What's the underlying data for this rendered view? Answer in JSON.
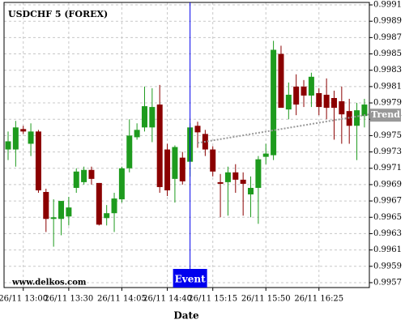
{
  "chart_data": {
    "type": "candlestick",
    "title": "USDCHF 5 (FOREX)",
    "x_label": "Date",
    "watermark": "www.delkos.com",
    "categories": [
      null,
      null,
      "26/11 13:00",
      null,
      null,
      null,
      null,
      null,
      "26/11 13:30",
      null,
      null,
      null,
      null,
      null,
      null,
      "26/11 14:05",
      null,
      null,
      null,
      null,
      null,
      "26/11 14:40",
      null,
      null,
      null,
      null,
      null,
      "26/11 15:15",
      null,
      null,
      null,
      null,
      null,
      null,
      "26/11 15:50",
      null,
      null,
      null,
      null,
      null,
      null,
      "26/11 16:25",
      null,
      null,
      null,
      null,
      null,
      null
    ],
    "open": [
      0.99733,
      0.99733,
      0.99758,
      0.9974,
      0.99755,
      0.99681,
      0.99648,
      0.99648,
      0.99651,
      0.99686,
      0.99693,
      0.99708,
      0.99692,
      0.99649,
      0.99655,
      0.99672,
      0.9971,
      0.99748,
      0.9976,
      0.9976,
      0.99788,
      0.99733,
      0.99697,
      0.99723,
      0.99718,
      0.99762,
      0.99752,
      0.99733,
      0.99693,
      0.99693,
      0.99705,
      0.99696,
      0.99678,
      0.99686,
      0.99724,
      0.99726,
      0.9985,
      0.99782,
      0.9981,
      0.9981,
      0.99799,
      0.99802,
      0.998,
      0.99796,
      0.99792,
      0.9978,
      0.99762,
      0.99774
    ],
    "high": [
      0.99755,
      0.99768,
      0.99762,
      0.99765,
      0.99757,
      0.99685,
      0.99672,
      0.9967,
      0.99675,
      0.9971,
      0.99712,
      0.99712,
      0.99692,
      0.99665,
      0.9968,
      0.99712,
      0.9977,
      0.99765,
      0.9981,
      0.99808,
      0.99812,
      0.9974,
      0.99738,
      0.9973,
      0.99765,
      0.99767,
      0.99757,
      0.99737,
      0.99703,
      0.99712,
      0.99715,
      0.99705,
      0.997,
      0.99725,
      0.9974,
      0.99866,
      0.9986,
      0.99815,
      0.99825,
      0.99818,
      0.99827,
      0.99808,
      0.9982,
      0.99805,
      0.9981,
      0.99795,
      0.9979,
      0.99795
    ],
    "low": [
      0.9972,
      0.99712,
      0.99752,
      0.99725,
      0.9968,
      0.99632,
      0.99614,
      0.99628,
      0.9964,
      0.9968,
      0.9969,
      0.9969,
      0.9964,
      0.9964,
      0.99632,
      0.99668,
      0.99705,
      0.99745,
      0.99755,
      0.99742,
      0.9968,
      0.99676,
      0.99668,
      0.9969,
      0.997,
      0.99735,
      0.99725,
      0.997,
      0.9965,
      0.99652,
      0.9968,
      0.99652,
      0.9965,
      0.99642,
      0.99715,
      0.9972,
      0.99785,
      0.9977,
      0.99775,
      0.99785,
      0.99785,
      0.99775,
      0.9977,
      0.99745,
      0.9974,
      0.9974,
      0.9972,
      0.9976
    ],
    "close": [
      0.99743,
      0.9976,
      0.99755,
      0.99755,
      0.99683,
      0.99648,
      0.9965,
      0.9967,
      0.99662,
      0.99706,
      0.99708,
      0.99697,
      0.99641,
      0.99655,
      0.99673,
      0.9971,
      0.9975,
      0.99757,
      0.99786,
      0.99785,
      0.99687,
      0.99683,
      0.99736,
      0.99694,
      0.9976,
      0.99754,
      0.99733,
      0.99706,
      0.99691,
      0.99705,
      0.99696,
      0.99691,
      0.99686,
      0.99721,
      0.99728,
      0.99855,
      0.99784,
      0.998,
      0.99788,
      0.99799,
      0.99822,
      0.99785,
      0.99784,
      0.99784,
      0.99776,
      0.99762,
      0.99781,
      0.99788
    ],
    "up_color": "#1e9b1e",
    "down_color": "#8b0000",
    "ylim": [
      0.99564,
      0.99913
    ],
    "yticks": [
      0.9991,
      0.9989,
      0.9987,
      0.9985,
      0.9983,
      0.9981,
      0.9979,
      0.9977,
      0.9975,
      0.9973,
      0.9971,
      0.9969,
      0.9967,
      0.9965,
      0.9963,
      0.9961,
      0.9959,
      0.9957
    ],
    "grid": true,
    "event": {
      "label": "Event",
      "index": 24,
      "color": "#0000ee"
    },
    "trend": {
      "label": "Trend",
      "x": [
        25,
        47
      ],
      "values": [
        0.99741,
        0.99775
      ],
      "color": "#999999"
    }
  }
}
